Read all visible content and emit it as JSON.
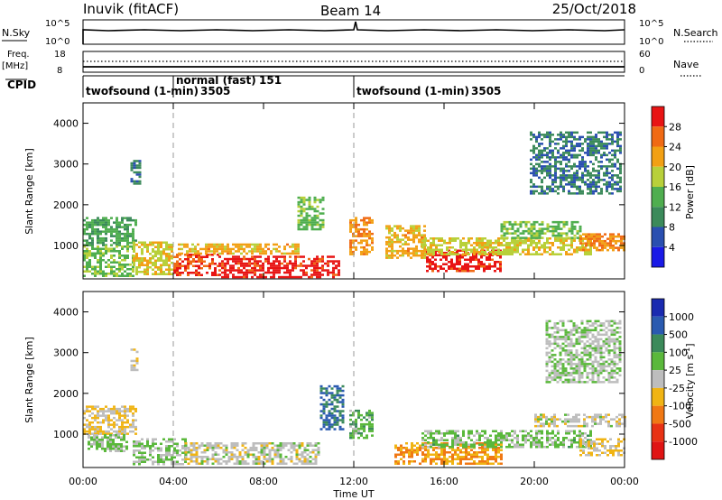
{
  "header": {
    "station": "Inuvik (fitACF)",
    "beam": "Beam 14",
    "date": "25/Oct/2018"
  },
  "noise_panel": {
    "left_label": "N.Sky",
    "left_ticks": [
      "10^5",
      "10^0"
    ],
    "right_label": "N.Search",
    "right_ticks": [
      "10^5",
      "10^0"
    ]
  },
  "freq_panel": {
    "left_label_top": "Freq.",
    "left_label_unit": "[MHz]",
    "left_ticks": [
      "18",
      "8"
    ],
    "right_label": "Nave",
    "right_ticks": [
      "60",
      "0"
    ]
  },
  "cpid_panel": {
    "label": "CPID",
    "segments": [
      {
        "start_hour": 0,
        "end_hour": 4,
        "name": "twofsound (1-min)",
        "id": "3505"
      },
      {
        "start_hour": 4,
        "end_hour": 12,
        "name": "normal (fast)",
        "id": "151"
      },
      {
        "start_hour": 12,
        "end_hour": 24,
        "name": "twofsound (1-min)",
        "id": "3505"
      }
    ]
  },
  "x_axis": {
    "label": "Time UT",
    "ticks": [
      "00:00",
      "04:00",
      "08:00",
      "12:00",
      "16:00",
      "20:00",
      "00:00"
    ],
    "tick_hours": [
      0,
      4,
      8,
      12,
      16,
      20,
      24
    ]
  },
  "colors": {
    "power_scale": [
      "#1a1ae6",
      "#2a4fb0",
      "#3b8a5a",
      "#4fae4f",
      "#b8d03a",
      "#f2a014",
      "#f06a14",
      "#e81414"
    ],
    "velocity_scale": [
      "#1a2ab0",
      "#2a5ab0",
      "#3b8a5a",
      "#5ab83b",
      "#bdbdbd",
      "#f0b414",
      "#f07814",
      "#e83214",
      "#e01414"
    ]
  },
  "chart_data": [
    {
      "type": "heatmap",
      "title": "",
      "xlabel": "Time UT",
      "ylabel": "Slant Range [km]",
      "xlim": [
        0,
        24
      ],
      "ylim": [
        180,
        4500
      ],
      "yticks": [
        "1000",
        "2000",
        "3000",
        "4000"
      ],
      "ytick_values": [
        1000,
        2000,
        3000,
        4000
      ],
      "colorbar": {
        "label": "Power [dB]",
        "ticks": [
          "28",
          "24",
          "20",
          "16",
          "12",
          "8",
          "4"
        ],
        "tick_values": [
          28,
          24,
          20,
          16,
          12,
          8,
          4
        ],
        "range": [
          0,
          30
        ]
      },
      "regions": [
        {
          "t0": 0.0,
          "t1": 2.4,
          "r0": 1000,
          "r1": 1700,
          "value": 12
        },
        {
          "t0": 0.0,
          "t1": 2.2,
          "r0": 250,
          "r1": 1000,
          "value": 14
        },
        {
          "t0": 2.2,
          "t1": 4.0,
          "r0": 300,
          "r1": 1100,
          "value": 18
        },
        {
          "t0": 4.0,
          "t1": 6.0,
          "r0": 300,
          "r1": 800,
          "value": 26
        },
        {
          "t0": 6.0,
          "t1": 11.3,
          "r0": 220,
          "r1": 750,
          "value": 28
        },
        {
          "t0": 4.2,
          "t1": 9.5,
          "r0": 800,
          "r1": 1050,
          "value": 20
        },
        {
          "t0": 9.5,
          "t1": 10.6,
          "r0": 1400,
          "r1": 2200,
          "value": 14
        },
        {
          "t0": 11.8,
          "t1": 12.8,
          "r0": 800,
          "r1": 1700,
          "value": 22
        },
        {
          "t0": 13.4,
          "t1": 15.2,
          "r0": 700,
          "r1": 1500,
          "value": 20
        },
        {
          "t0": 15.2,
          "t1": 18.5,
          "r0": 350,
          "r1": 900,
          "value": 28
        },
        {
          "t0": 15.0,
          "t1": 22.5,
          "r0": 800,
          "r1": 1200,
          "value": 18
        },
        {
          "t0": 18.5,
          "t1": 22.0,
          "r0": 1200,
          "r1": 1600,
          "value": 14
        },
        {
          "t0": 22.0,
          "t1": 24.0,
          "r0": 900,
          "r1": 1300,
          "value": 22
        },
        {
          "t0": 2.1,
          "t1": 2.5,
          "r0": 2500,
          "r1": 3100,
          "value": 8
        },
        {
          "t0": 19.8,
          "t1": 23.8,
          "r0": 2300,
          "r1": 3800,
          "value": 8
        }
      ]
    },
    {
      "type": "heatmap",
      "title": "",
      "xlabel": "Time UT",
      "ylabel": "Slant Range [km]",
      "xlim": [
        0,
        24
      ],
      "ylim": [
        180,
        4500
      ],
      "yticks": [
        "1000",
        "2000",
        "3000",
        "4000"
      ],
      "ytick_values": [
        1000,
        2000,
        3000,
        4000
      ],
      "colorbar": {
        "label": "Velocity [m s^-1]",
        "ticks": [
          "1000",
          "500",
          "100",
          "25",
          "-25",
          "-100",
          "-500",
          "-1000"
        ],
        "tick_values": [
          1000,
          500,
          100,
          25,
          -25,
          -100,
          -500,
          -1000
        ],
        "range": [
          -1200,
          1200
        ]
      },
      "regions": [
        {
          "t0": 0.0,
          "t1": 2.4,
          "r0": 1000,
          "r1": 1700,
          "value": -150
        },
        {
          "t0": 0.2,
          "t1": 2.0,
          "r0": 600,
          "r1": 1000,
          "value": 150
        },
        {
          "t0": 2.2,
          "t1": 4.5,
          "r0": 250,
          "r1": 900,
          "value": 100
        },
        {
          "t0": 4.5,
          "t1": 10.5,
          "r0": 300,
          "r1": 800,
          "value": 0
        },
        {
          "t0": 10.5,
          "t1": 11.5,
          "r0": 1100,
          "r1": 2200,
          "value": 700
        },
        {
          "t0": 11.8,
          "t1": 12.8,
          "r0": 900,
          "r1": 1600,
          "value": 300
        },
        {
          "t0": 13.8,
          "t1": 18.5,
          "r0": 300,
          "r1": 800,
          "value": -400
        },
        {
          "t0": 15.0,
          "t1": 22.5,
          "r0": 700,
          "r1": 1100,
          "value": 200
        },
        {
          "t0": 20.0,
          "t1": 24.0,
          "r0": 1200,
          "r1": 1500,
          "value": 0
        },
        {
          "t0": 22.0,
          "t1": 24.0,
          "r0": 500,
          "r1": 900,
          "value": -150
        },
        {
          "t0": 2.1,
          "t1": 2.4,
          "r0": 2500,
          "r1": 3100,
          "value": 0
        },
        {
          "t0": 20.5,
          "t1": 23.8,
          "r0": 2300,
          "r1": 3800,
          "value": 100
        }
      ]
    }
  ]
}
